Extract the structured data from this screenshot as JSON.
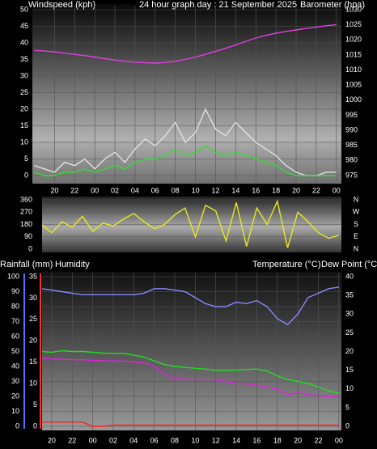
{
  "chart_data": [
    {
      "type": "line",
      "title": "24 hour graph day : 21 September 2025",
      "ylabel": "Windspeed (kph)",
      "y2label": "Barometer (hpa)",
      "x": [
        18,
        19,
        20,
        21,
        22,
        23,
        24,
        25,
        26,
        27,
        28,
        29,
        30,
        31,
        32,
        33,
        34,
        35,
        36,
        37,
        38,
        39,
        40,
        41,
        42,
        43,
        44,
        45,
        46,
        47,
        48
      ],
      "xlim": [
        17.8,
        48.5
      ],
      "xticks": [
        {
          "value": 20,
          "label": "20"
        },
        {
          "value": 22,
          "label": "22"
        },
        {
          "value": 24,
          "label": "00"
        },
        {
          "value": 26,
          "label": "02"
        },
        {
          "value": 28,
          "label": "04"
        },
        {
          "value": 30,
          "label": "06"
        },
        {
          "value": 32,
          "label": "08"
        },
        {
          "value": 34,
          "label": "10"
        },
        {
          "value": 36,
          "label": "12"
        },
        {
          "value": 38,
          "label": "14"
        },
        {
          "value": 40,
          "label": "16"
        },
        {
          "value": 42,
          "label": "18"
        },
        {
          "value": 44,
          "label": "20"
        },
        {
          "value": 46,
          "label": "22"
        },
        {
          "value": 48,
          "label": "00"
        }
      ],
      "ylim": [
        0,
        50
      ],
      "yticks": [
        0,
        5,
        10,
        15,
        20,
        25,
        30,
        35,
        40,
        45,
        50
      ],
      "ytick_color": "#ffffff",
      "y2lim": [
        975,
        1030
      ],
      "y2ticks": [
        975,
        980,
        985,
        990,
        995,
        1000,
        1005,
        1010,
        1015,
        1020,
        1025,
        1030
      ],
      "y2tick_color": "#e040e0",
      "grid": true,
      "series": [
        {
          "color": "#e0e0e0",
          "values": [
            3,
            2,
            1,
            4,
            3,
            5,
            2,
            5,
            7,
            4,
            8,
            11,
            9,
            12,
            16,
            10,
            13,
            20,
            14,
            12,
            16,
            13,
            10,
            8,
            6,
            3,
            1,
            0,
            0,
            1,
            1
          ]
        },
        {
          "color": "#33dd33",
          "values": [
            1,
            0,
            0,
            1,
            1,
            2,
            1,
            2,
            3,
            2,
            4,
            5,
            5,
            6,
            8,
            6,
            7,
            9,
            7,
            6,
            7,
            6,
            5,
            4,
            3,
            1,
            0,
            0,
            0,
            0,
            0
          ]
        },
        {
          "color": "#e040e0",
          "axis": "y2",
          "values": [
            1016.5,
            1016.3,
            1016,
            1015.6,
            1015.2,
            1014.8,
            1014.3,
            1013.8,
            1013.3,
            1012.9,
            1012.6,
            1012.4,
            1012.3,
            1012.5,
            1012.9,
            1013.5,
            1014.3,
            1015.2,
            1016.2,
            1017.2,
            1018.3,
            1019.5,
            1020.6,
            1021.5,
            1022.2,
            1022.8,
            1023.3,
            1023.8,
            1024.2,
            1024.7,
            1025
          ]
        }
      ]
    },
    {
      "type": "line",
      "x": [
        18,
        19,
        20,
        21,
        22,
        23,
        24,
        25,
        26,
        27,
        28,
        29,
        30,
        31,
        32,
        33,
        34,
        35,
        36,
        37,
        38,
        39,
        40,
        41,
        42,
        43,
        44,
        45,
        46,
        47,
        48
      ],
      "xlim": [
        19.06,
        48.25
      ],
      "ylim": [
        0,
        360
      ],
      "yticks": [
        0,
        90,
        180,
        270,
        360
      ],
      "ytick_color": "#ffffff",
      "y2lim": [
        0,
        360
      ],
      "y2ticks": [
        {
          "value": 0,
          "label": "N"
        },
        {
          "value": 90,
          "label": "E"
        },
        {
          "value": 180,
          "label": "S"
        },
        {
          "value": 270,
          "label": "W"
        },
        {
          "value": 360,
          "label": "N"
        }
      ],
      "y2tick_color": "#ffffff",
      "grid": true,
      "series": [
        {
          "color": "#e8e820",
          "values": [
            150,
            180,
            120,
            200,
            160,
            240,
            130,
            190,
            170,
            220,
            260,
            200,
            150,
            180,
            250,
            300,
            90,
            320,
            280,
            60,
            340,
            20,
            300,
            180,
            350,
            10,
            270,
            200,
            120,
            80,
            100
          ]
        }
      ]
    },
    {
      "type": "line",
      "x": [
        18,
        19,
        20,
        21,
        22,
        23,
        24,
        25,
        26,
        27,
        28,
        29,
        30,
        31,
        32,
        33,
        34,
        35,
        36,
        37,
        38,
        39,
        40,
        41,
        42,
        43,
        44,
        45,
        46,
        47,
        48
      ],
      "xlim": [
        19.06,
        48.25
      ],
      "xticks": [
        {
          "value": 20,
          "label": "20"
        },
        {
          "value": 22,
          "label": "22"
        },
        {
          "value": 24,
          "label": "00"
        },
        {
          "value": 26,
          "label": "02"
        },
        {
          "value": 28,
          "label": "04"
        },
        {
          "value": 30,
          "label": "06"
        },
        {
          "value": 32,
          "label": "08"
        },
        {
          "value": 34,
          "label": "10"
        },
        {
          "value": 36,
          "label": "12"
        },
        {
          "value": 38,
          "label": "14"
        },
        {
          "value": 40,
          "label": "16"
        },
        {
          "value": 42,
          "label": "18"
        },
        {
          "value": 44,
          "label": "20"
        },
        {
          "value": 46,
          "label": "22"
        },
        {
          "value": 48,
          "label": "00"
        }
      ],
      "ylim": [
        0,
        100
      ],
      "yticks": [
        0,
        10,
        20,
        30,
        40,
        50,
        60,
        70,
        80,
        90,
        100
      ],
      "ytick_color": "#8888ff",
      "y3lim": [
        0,
        35
      ],
      "y3ticks": [
        0,
        5,
        10,
        15,
        20,
        25,
        30,
        35
      ],
      "y3tick_color": "#ff3030",
      "y2lim": [
        0,
        40
      ],
      "y2ticks": [
        0,
        5,
        10,
        15,
        20,
        25,
        30,
        35,
        40
      ],
      "y2tick_color": "#22dd22",
      "grid": true,
      "series": [
        {
          "name": "Rainfall (mm)",
          "color": "#ff2020",
          "axis": "y3",
          "values": [
            1,
            1,
            1,
            1,
            1,
            1,
            0,
            0,
            0.3,
            0.3,
            0.3,
            0.3,
            0.3,
            0.3,
            0.3,
            0.3,
            0.3,
            0.3,
            0.3,
            0.3,
            0.3,
            0.3,
            0.3,
            0.3,
            0.3,
            0.3,
            0.3,
            0.3,
            0.3,
            0.3,
            0.3
          ]
        },
        {
          "name": "Humidity",
          "color": "#8888ff",
          "values": [
            92,
            92,
            91,
            90,
            89,
            88,
            88,
            88,
            88,
            88,
            88,
            89,
            92,
            92,
            91,
            90,
            86,
            82,
            80,
            80,
            83,
            82,
            84,
            80,
            72,
            68,
            75,
            86,
            89,
            92,
            93
          ]
        },
        {
          "name": "Temperature (°C)",
          "color": "#22dd22",
          "axis": "y2",
          "values": [
            20,
            20,
            19.8,
            20.2,
            20,
            20,
            19.8,
            19.6,
            19.5,
            19.5,
            19,
            18.5,
            17.5,
            16.5,
            16,
            15.8,
            15.5,
            15.3,
            15,
            15,
            15,
            15.2,
            15.3,
            14.8,
            13.5,
            12.5,
            12,
            11.5,
            10.5,
            9.5,
            8.8
          ]
        },
        {
          "name": "Dew Point (°C)",
          "color": "#dd22dd",
          "axis": "y2",
          "values": [
            18.5,
            18.3,
            18,
            18,
            17.8,
            17.8,
            17.6,
            17.5,
            17.5,
            17.4,
            17.2,
            17,
            16,
            14,
            12.8,
            12.6,
            12.5,
            12.5,
            12.4,
            12,
            11.5,
            11.4,
            11,
            10.5,
            10,
            8.5,
            9,
            8.5,
            8.2,
            8,
            7.8
          ]
        }
      ]
    }
  ]
}
